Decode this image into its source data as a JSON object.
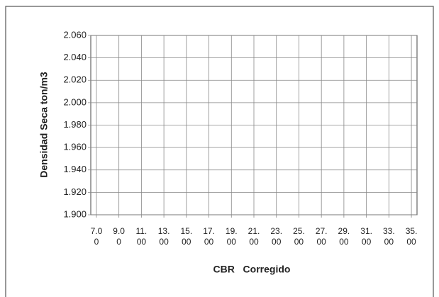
{
  "chart_data": {
    "type": "scatter",
    "ylabel": "Densidad Seca ton/m3",
    "xlabel": "CBR   Corregido",
    "xlim": [
      6.5,
      35.5
    ],
    "xticks": [
      {
        "value": 7,
        "label": "7.00"
      },
      {
        "value": 9,
        "label": "9.00"
      },
      {
        "value": 11,
        "label": "11.00"
      },
      {
        "value": 13,
        "label": "13.00"
      },
      {
        "value": 15,
        "label": "15.00"
      },
      {
        "value": 17,
        "label": "17.00"
      },
      {
        "value": 19,
        "label": "19.00"
      },
      {
        "value": 21,
        "label": "21.00"
      },
      {
        "value": 23,
        "label": "23.00"
      },
      {
        "value": 25,
        "label": "25.00"
      },
      {
        "value": 27,
        "label": "27.00"
      },
      {
        "value": 29,
        "label": "29.00"
      },
      {
        "value": 31,
        "label": "31.00"
      },
      {
        "value": 33,
        "label": "33.00"
      },
      {
        "value": 35,
        "label": "35.00"
      }
    ],
    "ylim": [
      1.9,
      2.06
    ],
    "yticks": [
      {
        "value": 1.9,
        "label": "1.900"
      },
      {
        "value": 1.92,
        "label": "1.920"
      },
      {
        "value": 1.94,
        "label": "1.940"
      },
      {
        "value": 1.96,
        "label": "1.960"
      },
      {
        "value": 1.98,
        "label": "1.980"
      },
      {
        "value": 2.0,
        "label": "2.000"
      },
      {
        "value": 2.02,
        "label": "2.020"
      },
      {
        "value": 2.04,
        "label": "2.040"
      },
      {
        "value": 2.06,
        "label": "2.060"
      }
    ],
    "grid": true
  }
}
